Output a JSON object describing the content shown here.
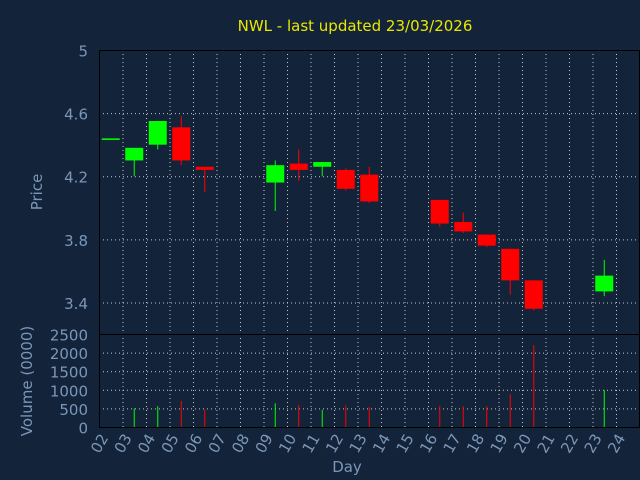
{
  "colors": {
    "background": "#13233a",
    "text": "#7b97b8",
    "title": "#e8e800",
    "axis": "#000000",
    "grid": "#c8c8c8",
    "up": "#00ff00",
    "down": "#ff0000"
  },
  "chart_data": [
    {
      "type": "candlestick",
      "title": "NWL - last updated 23/03/2026",
      "ylabel": "Price",
      "ylim": [
        3.2,
        5.0
      ],
      "yticks": [
        "3.4",
        "3.8",
        "4.2",
        "4.6",
        "5"
      ],
      "grid": true,
      "x": [
        "02",
        "03",
        "04",
        "05",
        "06",
        "09",
        "10",
        "11",
        "12",
        "13",
        "16",
        "17",
        "18",
        "19",
        "20",
        "23"
      ],
      "open": [
        4.43,
        4.3,
        4.4,
        4.51,
        4.26,
        4.16,
        4.28,
        4.26,
        4.24,
        4.21,
        4.05,
        3.91,
        3.83,
        3.74,
        3.54,
        3.47
      ],
      "high": [
        4.43,
        4.38,
        4.55,
        4.58,
        4.26,
        4.3,
        4.37,
        4.29,
        4.25,
        4.26,
        4.05,
        3.97,
        3.83,
        3.74,
        3.54,
        3.67
      ],
      "low": [
        4.43,
        4.2,
        4.37,
        4.27,
        4.1,
        3.98,
        4.17,
        4.2,
        4.11,
        4.03,
        3.88,
        3.84,
        3.75,
        3.45,
        3.35,
        3.44
      ],
      "close": [
        4.44,
        4.38,
        4.55,
        4.3,
        4.24,
        4.27,
        4.24,
        4.29,
        4.12,
        4.04,
        3.9,
        3.85,
        3.76,
        3.54,
        3.36,
        3.57
      ]
    },
    {
      "type": "bar",
      "ylabel": "Volume (0000)",
      "xlabel": "Day",
      "ylim": [
        0,
        2500
      ],
      "yticks": [
        "0",
        "500",
        "1000",
        "1500",
        "2000",
        "2500"
      ],
      "grid": true,
      "categories": [
        "02",
        "03",
        "04",
        "05",
        "06",
        "07",
        "08",
        "09",
        "10",
        "11",
        "12",
        "13",
        "14",
        "15",
        "16",
        "17",
        "18",
        "19",
        "20",
        "21",
        "22",
        "23",
        "24"
      ],
      "values": [
        0,
        500,
        560,
        700,
        470,
        0,
        0,
        640,
        590,
        460,
        580,
        540,
        0,
        0,
        570,
        560,
        560,
        880,
        2200,
        0,
        0,
        990,
        0
      ]
    }
  ]
}
